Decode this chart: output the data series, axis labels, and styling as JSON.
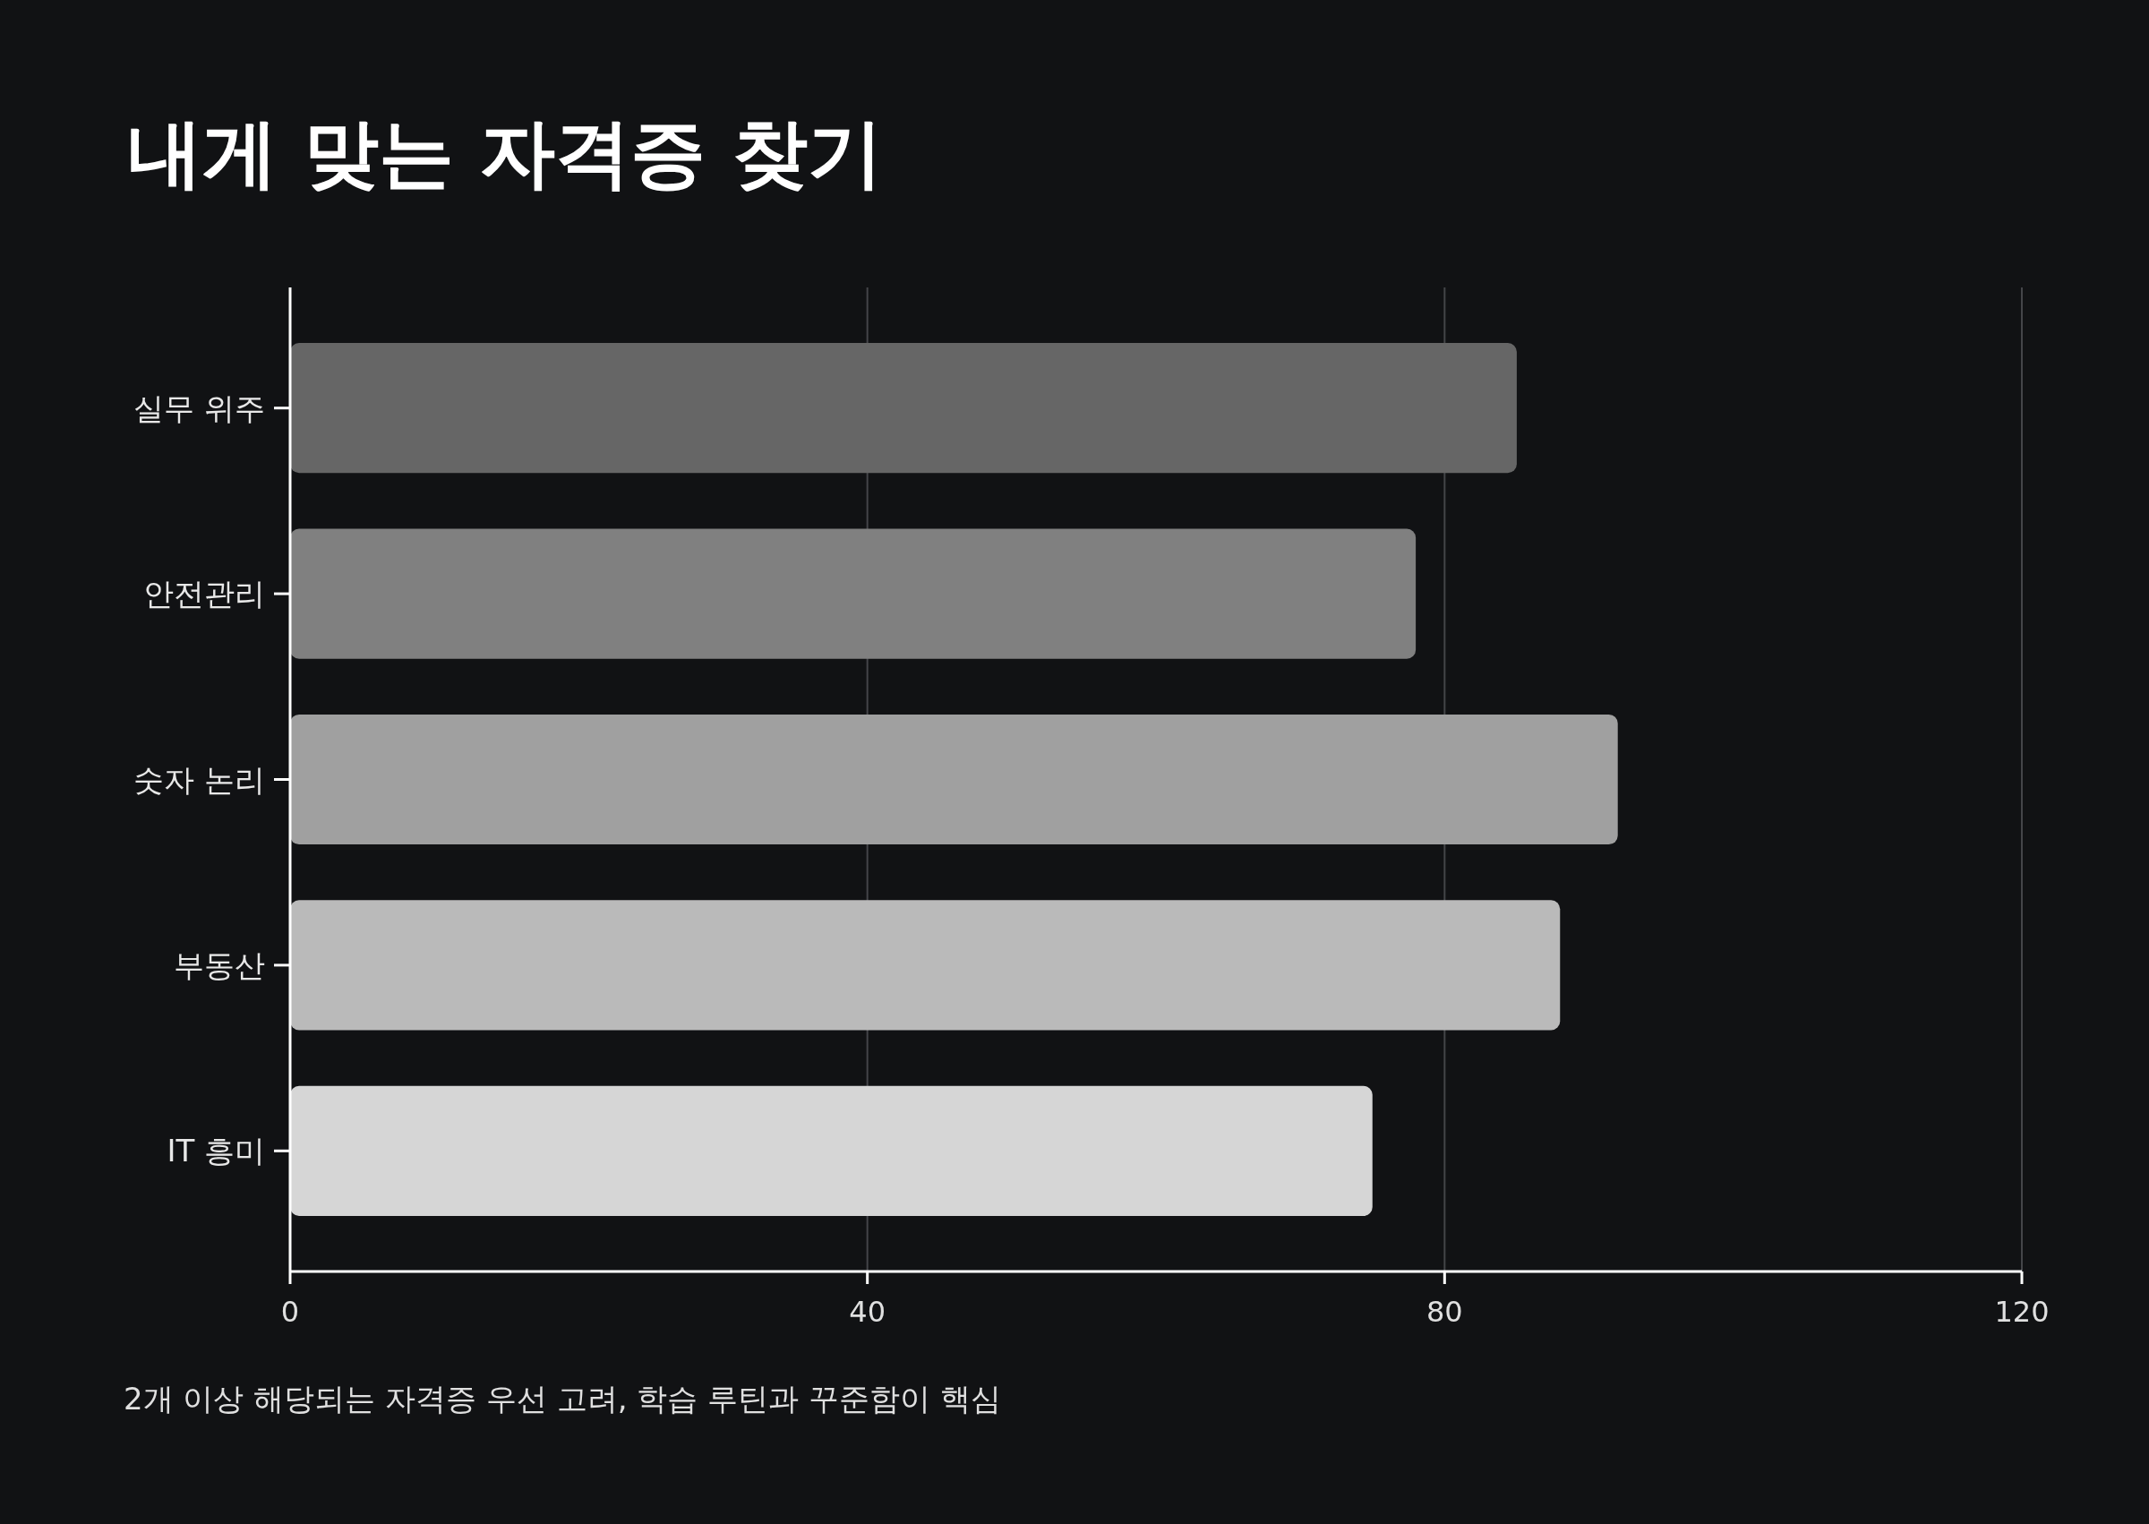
{
  "chart_data": {
    "type": "bar",
    "orientation": "horizontal",
    "title": "내게 맞는 자격증 찾기",
    "categories": [
      "실무 위주",
      "안전관리",
      "숫자 논리",
      "부동산",
      "IT 흥미"
    ],
    "values": [
      85,
      78,
      92,
      88,
      75
    ],
    "colors": [
      "#666666",
      "#808080",
      "#a0a0a0",
      "#bababa",
      "#d6d6d6"
    ],
    "xlim": [
      0,
      120
    ],
    "xticks": [
      0,
      40,
      80,
      120
    ],
    "grid": "x",
    "annotations": [
      "2개 이상 해당되는 자격증 우선 고려, 학습 루틴과 꾸준함이 핵심"
    ]
  }
}
